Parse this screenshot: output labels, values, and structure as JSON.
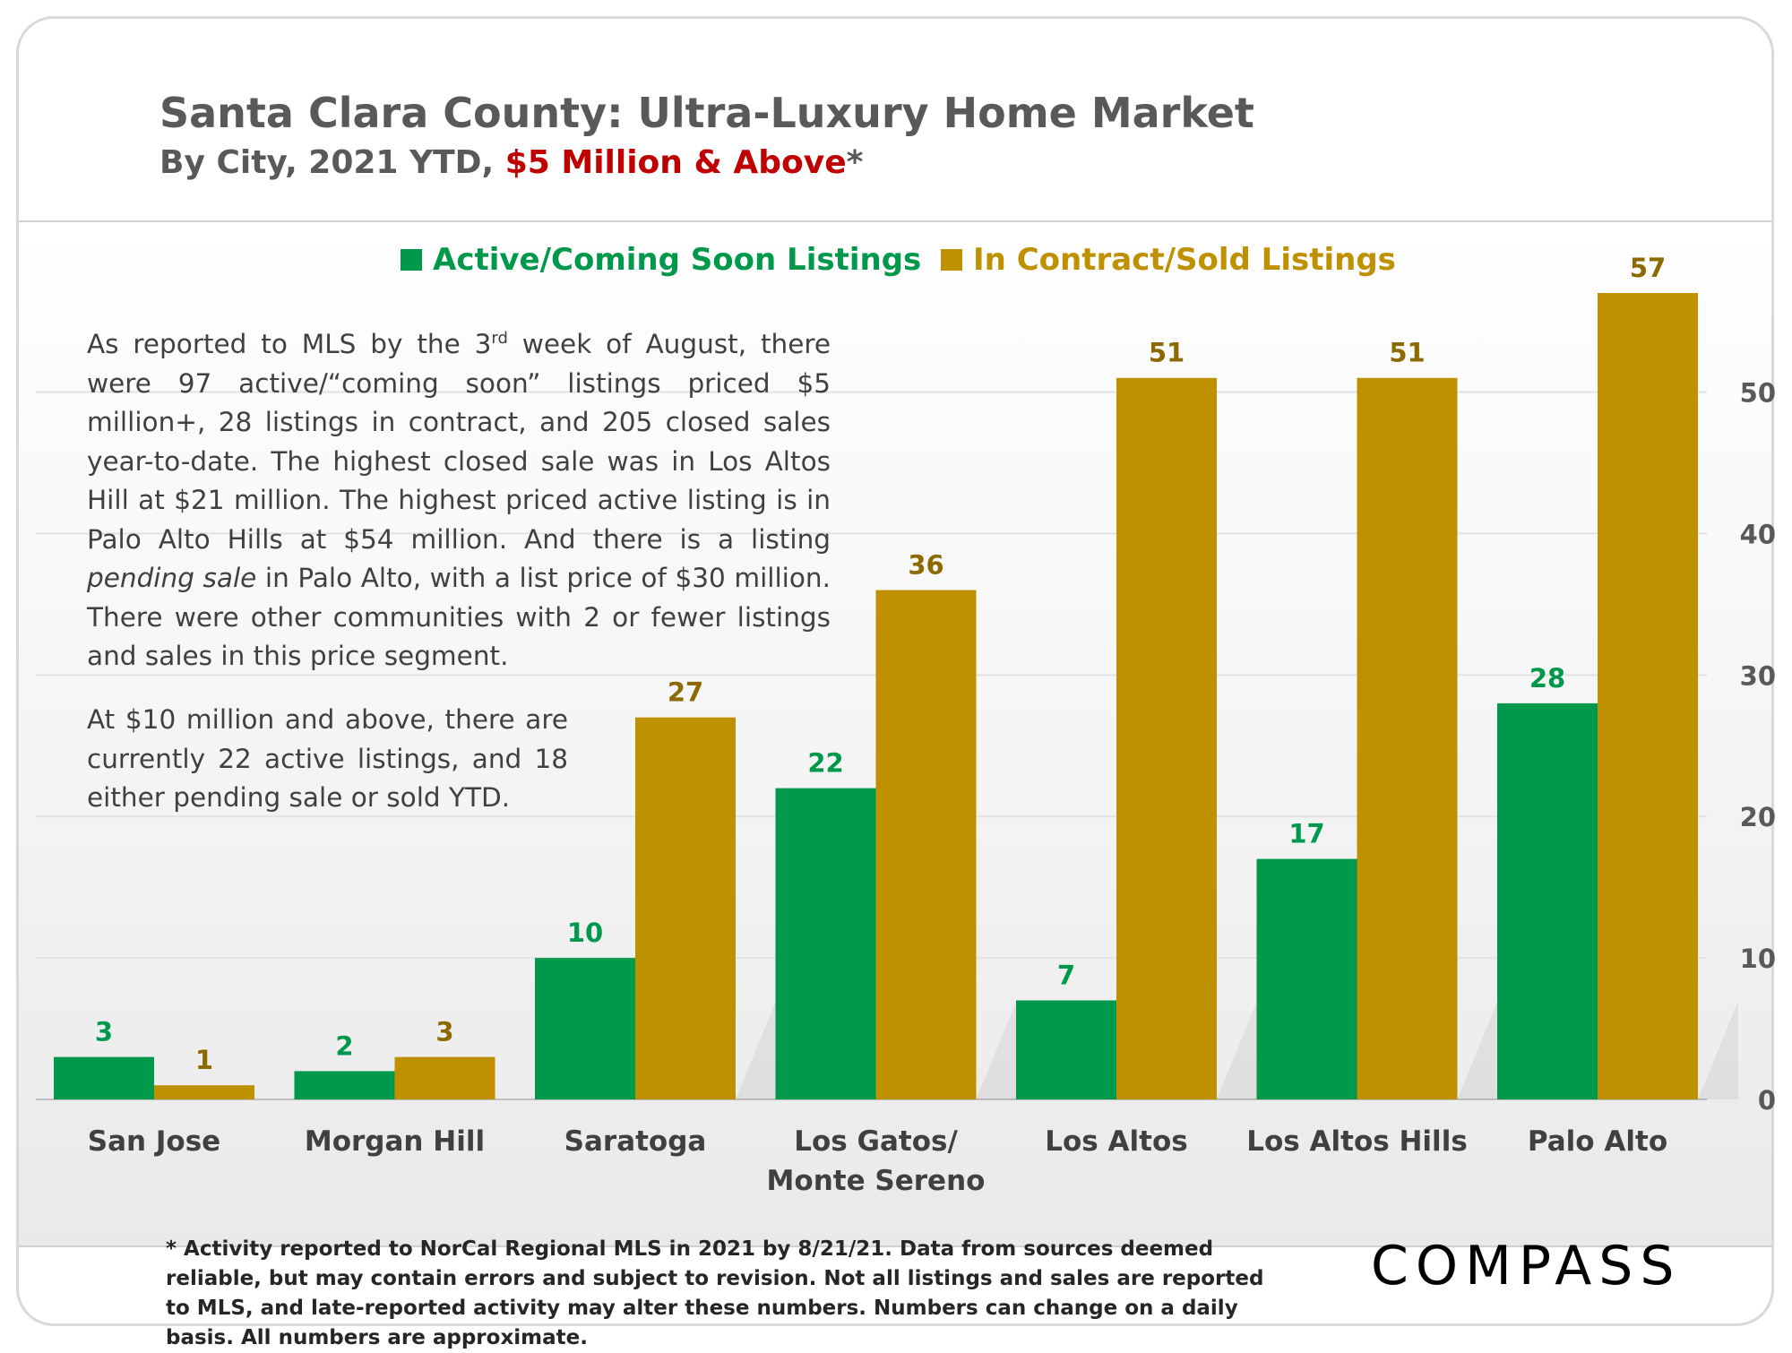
{
  "header": {
    "title": "Santa Clara County: Ultra-Luxury Home Market",
    "subtitle_prefix": "By City, 2021 YTD, ",
    "subtitle_highlight": "$5 Million & Above",
    "subtitle_suffix": "*"
  },
  "annotation": {
    "p1_a": "As reported to MLS by the 3",
    "p1_sup": "rd",
    "p1_b": " week of August, there were 97 active/“coming soon” listings priced $5 million+, 28 listings in contract, and 205 closed sales year-to-date.  The highest closed sale was in Los Altos Hill at $21 million. The highest priced active listing is in Palo Alto Hills at $54 million. And there is a listing ",
    "p1_em": "pending sale",
    "p1_c": " in Palo Alto, with a list price of $30 million. There were other communities with 2 or fewer listings and sales in this price segment.",
    "p2": "At $10 million and above, there are currently 22 active listings, and 18 either pending sale or sold YTD."
  },
  "footnote": "* Activity reported to NorCal Regional MLS in 2021 by 8/21/21. Data from sources deemed reliable, but may contain errors and subject to revision. Not all listings and sales are reported to MLS, and late-reported activity may alter these numbers. Numbers can change on a daily basis. All numbers are approximate.",
  "logo": "COMPASS",
  "colors": {
    "active": "#00994c",
    "sold": "#bf9000",
    "active_label": "#00994c",
    "sold_label": "#8c6a00"
  },
  "chart_data": {
    "type": "bar",
    "categories": [
      "San Jose",
      "Morgan Hill",
      "Saratoga",
      "Los Gatos/ Monte Sereno",
      "Los Altos",
      "Los Altos Hills",
      "Palo Alto"
    ],
    "category_lines": [
      [
        "San Jose"
      ],
      [
        "Morgan Hill"
      ],
      [
        "Saratoga"
      ],
      [
        "Los Gatos/",
        "Monte Sereno"
      ],
      [
        "Los Altos"
      ],
      [
        "Los Altos Hills"
      ],
      [
        "Palo Alto"
      ]
    ],
    "series": [
      {
        "name": "Active/Coming Soon Listings",
        "values": [
          3,
          2,
          10,
          22,
          7,
          17,
          28
        ]
      },
      {
        "name": "In Contract/Sold Listings",
        "values": [
          1,
          3,
          27,
          36,
          51,
          51,
          57
        ]
      }
    ],
    "y_ticks": [
      0,
      10,
      20,
      30,
      40,
      50
    ],
    "ylim": [
      0,
      57
    ],
    "y_axis_side": "right",
    "grid": true,
    "legend_position": "top"
  }
}
